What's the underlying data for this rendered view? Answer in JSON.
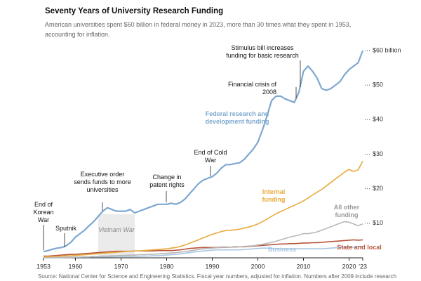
{
  "chart_data": {
    "type": "line",
    "title": "Seventy Years of University Research Funding",
    "subtitle": "American universities spent $60 billion in federal money in 2023, more than 30 times what they spent in 1953, accounting for inflation.",
    "source": "Source: National Center for Science and Engineering Statistics. Fiscal year numbers, adjusted for inflation. Numbers after 2009 include research",
    "x": [
      1953,
      1954,
      1955,
      1956,
      1957,
      1958,
      1959,
      1960,
      1961,
      1962,
      1963,
      1964,
      1965,
      1966,
      1967,
      1968,
      1969,
      1970,
      1971,
      1972,
      1973,
      1974,
      1975,
      1976,
      1977,
      1978,
      1979,
      1980,
      1981,
      1982,
      1983,
      1984,
      1985,
      1986,
      1987,
      1988,
      1989,
      1990,
      1991,
      1992,
      1993,
      1994,
      1995,
      1996,
      1997,
      1998,
      1999,
      2000,
      2001,
      2002,
      2003,
      2004,
      2005,
      2006,
      2007,
      2008,
      2009,
      2010,
      2011,
      2012,
      2013,
      2014,
      2015,
      2016,
      2017,
      2018,
      2019,
      2020,
      2021,
      2022,
      2023
    ],
    "xlim": [
      1953,
      2023
    ],
    "xticks": [
      1953,
      1960,
      1970,
      1980,
      1990,
      2000,
      2010,
      2020,
      {
        "value": 2023,
        "label": "’23"
      }
    ],
    "ylim": [
      0,
      60
    ],
    "yticks": [
      {
        "value": 10,
        "label": "$10"
      },
      {
        "value": 20,
        "label": "$20"
      },
      {
        "value": 30,
        "label": "$30"
      },
      {
        "value": 40,
        "label": "$40"
      },
      {
        "value": 50,
        "label": "$50"
      },
      {
        "value": 60,
        "label": "$60 billion"
      }
    ],
    "series": [
      {
        "name": "Business",
        "color": "#a9c6e0",
        "values": [
          0.1,
          0.1,
          0.1,
          0.1,
          0.1,
          0.2,
          0.2,
          0.2,
          0.2,
          0.2,
          0.2,
          0.3,
          0.3,
          0.3,
          0.3,
          0.3,
          0.4,
          0.4,
          0.4,
          0.4,
          0.4,
          0.4,
          0.5,
          0.5,
          0.6,
          0.6,
          0.7,
          0.8,
          0.9,
          1.0,
          1.1,
          1.3,
          1.5,
          1.7,
          1.8,
          2.0,
          2.1,
          2.2,
          2.3,
          2.3,
          2.3,
          2.3,
          2.3,
          2.3,
          2.4,
          2.5,
          2.6,
          2.7,
          2.8,
          2.8,
          2.7,
          2.7,
          2.6,
          2.6,
          2.6,
          2.6,
          2.6,
          2.6,
          2.6,
          2.6,
          2.6,
          2.6,
          2.7,
          2.8,
          2.9,
          3.0,
          3.1,
          3.1,
          3.1,
          3.2,
          3.3
        ]
      },
      {
        "name": "State and local",
        "color": "#b8553d",
        "values": [
          0.5,
          0.5,
          0.6,
          0.7,
          0.8,
          0.9,
          1.0,
          1.0,
          1.1,
          1.2,
          1.3,
          1.4,
          1.5,
          1.6,
          1.7,
          1.8,
          1.9,
          1.9,
          1.9,
          1.9,
          2.0,
          2.0,
          2.0,
          2.0,
          2.0,
          2.1,
          2.1,
          2.1,
          2.1,
          2.2,
          2.3,
          2.5,
          2.7,
          2.8,
          2.9,
          3.0,
          3.0,
          3.0,
          3.0,
          3.1,
          3.1,
          3.1,
          3.2,
          3.2,
          3.2,
          3.3,
          3.4,
          3.5,
          3.6,
          3.7,
          3.8,
          3.9,
          4.0,
          4.0,
          4.1,
          4.1,
          4.2,
          4.3,
          4.3,
          4.4,
          4.4,
          4.5,
          4.6,
          4.7,
          4.8,
          4.9,
          5.0,
          5.1,
          5.2,
          5.1,
          5.2
        ]
      },
      {
        "name": "All other funding",
        "color": "#b8b8b8",
        "values": [
          0.1,
          0.1,
          0.1,
          0.1,
          0.1,
          0.1,
          0.1,
          0.2,
          0.2,
          0.3,
          0.3,
          0.4,
          0.4,
          0.5,
          0.5,
          0.6,
          0.6,
          0.7,
          0.7,
          0.8,
          0.8,
          0.9,
          0.9,
          1.0,
          1.0,
          1.1,
          1.2,
          1.3,
          1.4,
          1.5,
          1.6,
          1.8,
          2.0,
          2.2,
          2.4,
          2.6,
          2.7,
          2.8,
          2.9,
          3.0,
          3.0,
          3.1,
          3.1,
          3.2,
          3.3,
          3.4,
          3.5,
          3.7,
          3.9,
          4.2,
          4.5,
          4.8,
          5.2,
          5.6,
          6.0,
          6.3,
          6.6,
          7.0,
          7.0,
          7.2,
          7.5,
          8.0,
          8.5,
          9.0,
          9.5,
          10.0,
          10.5,
          10.3,
          9.8,
          9.3,
          9.8
        ]
      },
      {
        "name": "Internal funding",
        "color": "#e7aa3c",
        "values": [
          0.3,
          0.35,
          0.4,
          0.45,
          0.5,
          0.55,
          0.6,
          0.7,
          0.8,
          0.9,
          1.0,
          1.1,
          1.2,
          1.3,
          1.4,
          1.5,
          1.6,
          1.7,
          1.8,
          1.9,
          2.0,
          2.0,
          2.1,
          2.2,
          2.3,
          2.4,
          2.5,
          2.6,
          2.8,
          3.0,
          3.3,
          3.7,
          4.2,
          4.7,
          5.2,
          5.8,
          6.3,
          6.8,
          7.2,
          7.6,
          7.9,
          8.0,
          8.1,
          8.3,
          8.6,
          8.9,
          9.3,
          9.8,
          10.5,
          11.2,
          12.0,
          12.8,
          13.4,
          14.0,
          14.6,
          15.2,
          15.8,
          16.5,
          17.3,
          18.2,
          19.0,
          19.8,
          20.8,
          21.8,
          22.8,
          23.8,
          24.8,
          25.6,
          25.0,
          25.5,
          28.0
        ]
      },
      {
        "name": "Federal research and development funding",
        "color": "#7ea8d0",
        "values": [
          1.8,
          2.1,
          2.5,
          2.8,
          3.0,
          3.5,
          4.5,
          6.0,
          7.0,
          8.0,
          9.3,
          10.5,
          12.0,
          13.5,
          14.5,
          14.0,
          13.5,
          13.5,
          13.5,
          14.0,
          13.0,
          13.5,
          14.0,
          14.5,
          15.0,
          15.5,
          15.5,
          15.5,
          15.8,
          15.5,
          16.0,
          17.0,
          18.5,
          20.0,
          21.5,
          22.5,
          23.0,
          23.5,
          24.5,
          26.0,
          27.0,
          27.0,
          27.3,
          27.5,
          28.5,
          30.0,
          31.5,
          33.5,
          37.0,
          41.0,
          45.5,
          46.8,
          46.8,
          46.0,
          45.5,
          45.0,
          48.0,
          54.0,
          55.5,
          54.0,
          52.0,
          49.0,
          48.5,
          49.0,
          50.0,
          51.0,
          53.0,
          54.5,
          55.5,
          56.5,
          60.0
        ]
      }
    ],
    "shaded_spans": [
      {
        "label": "Vietnam War",
        "start": 1965,
        "end": 1973
      }
    ],
    "annotations": [
      "End of Korean War",
      "Sputnik",
      "Executive order sends funds to more universities",
      "Change in patent rights",
      "End of Cold War",
      "Financial crisis of 2008",
      "Stimulus bill increases funding for basic research"
    ]
  }
}
